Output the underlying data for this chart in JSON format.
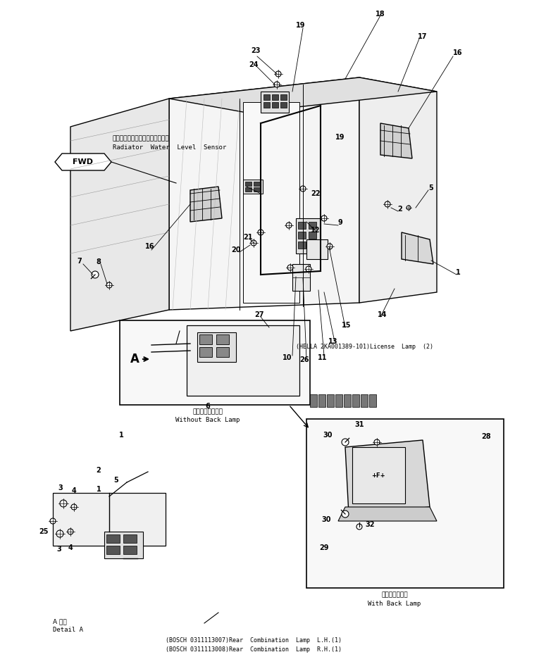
{
  "bg_color": "#ffffff",
  "line_color": "#000000",
  "fig_width": 7.75,
  "fig_height": 9.43,
  "dpi": 100,
  "annotations": {
    "radiator_label_jp": "ラジエータウォータレベルセンサ",
    "radiator_label_en": "Radiator  Water  Level  Sensor",
    "without_back_lamp_jp": "バックランプなし",
    "without_back_lamp_en": "Without Back Lamp",
    "with_back_lamp_jp": "バックランプ付",
    "with_back_lamp_en": "With Back Lamp",
    "detail_a_jp": "A 詳細",
    "detail_a_en": "Detail A",
    "hella_label": "(HELLA 2KA001389-101)License  Lamp  (2)",
    "bosch1": "(BOSCH 0311113007)Rear  Combination  Lamp  L.H.(1)",
    "bosch2": "(BOSCH 0311113008)Rear  Combination  Lamp  R.H.(1)"
  }
}
